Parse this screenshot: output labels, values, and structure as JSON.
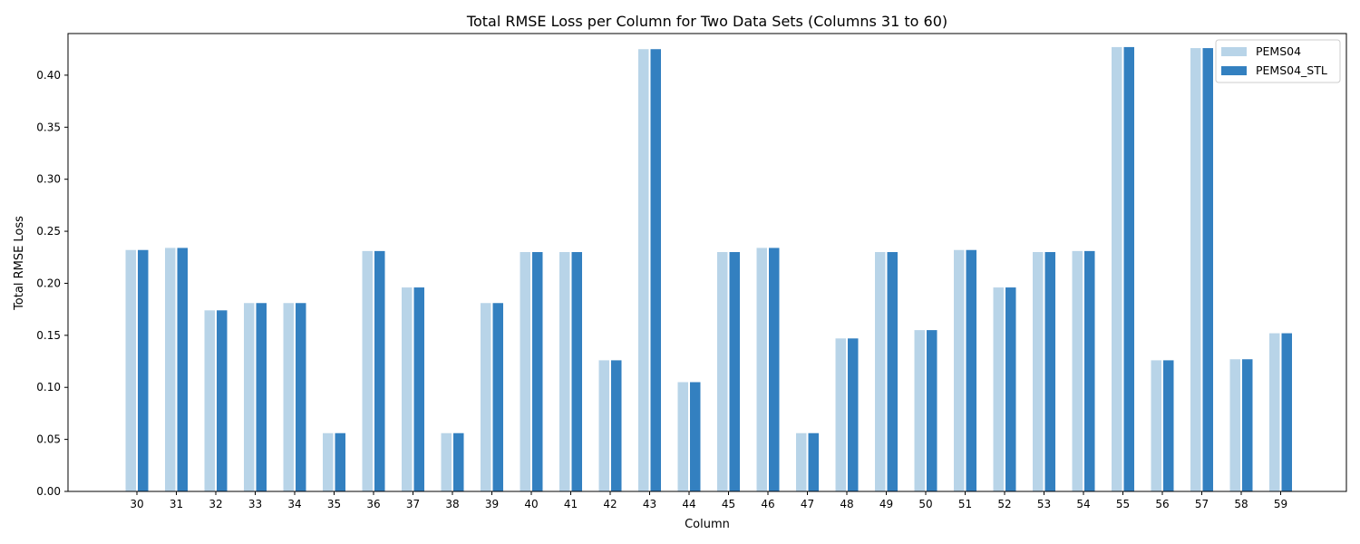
{
  "chart_data": {
    "type": "bar",
    "title": "Total RMSE Loss per Column for Two Data Sets (Columns 31 to 60)",
    "xlabel": "Column",
    "ylabel": "Total RMSE Loss",
    "ylim": [
      0,
      0.44
    ],
    "yticks": [
      "0.00",
      "0.05",
      "0.10",
      "0.15",
      "0.20",
      "0.25",
      "0.30",
      "0.35",
      "0.40"
    ],
    "grid": false,
    "legend_position": "top-right",
    "categories": [
      "30",
      "31",
      "32",
      "33",
      "34",
      "35",
      "36",
      "37",
      "38",
      "39",
      "40",
      "41",
      "42",
      "43",
      "44",
      "45",
      "46",
      "47",
      "48",
      "49",
      "50",
      "51",
      "52",
      "53",
      "54",
      "55",
      "56",
      "57",
      "58",
      "59"
    ],
    "series": [
      {
        "name": "PEMS04",
        "color": "#b8d4e8",
        "values": [
          0.232,
          0.234,
          0.174,
          0.181,
          0.181,
          0.056,
          0.231,
          0.196,
          0.056,
          0.181,
          0.23,
          0.23,
          0.126,
          0.425,
          0.105,
          0.23,
          0.234,
          0.056,
          0.147,
          0.23,
          0.155,
          0.232,
          0.196,
          0.23,
          0.231,
          0.427,
          0.126,
          0.426,
          0.127,
          0.152
        ]
      },
      {
        "name": "PEMS04_STL",
        "color": "#3380c0",
        "values": [
          0.232,
          0.234,
          0.174,
          0.181,
          0.181,
          0.056,
          0.231,
          0.196,
          0.056,
          0.181,
          0.23,
          0.23,
          0.126,
          0.425,
          0.105,
          0.23,
          0.234,
          0.056,
          0.147,
          0.23,
          0.155,
          0.232,
          0.196,
          0.23,
          0.231,
          0.427,
          0.126,
          0.426,
          0.127,
          0.152
        ]
      }
    ]
  }
}
